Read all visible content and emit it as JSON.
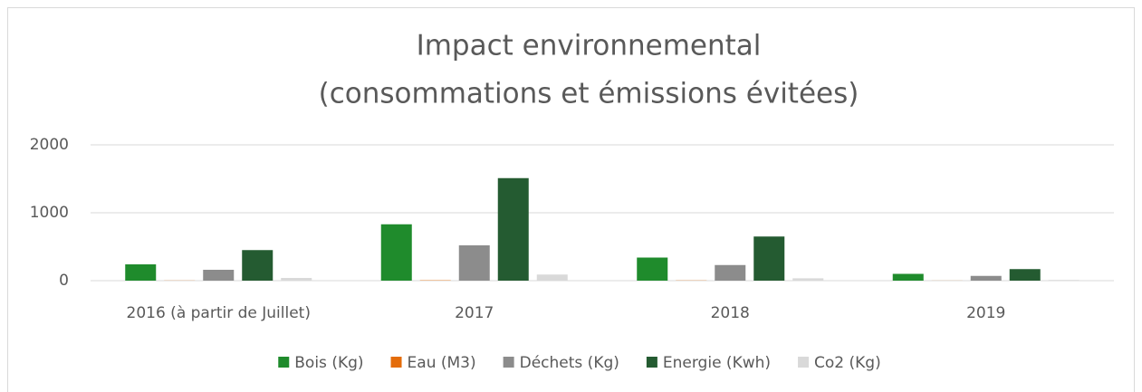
{
  "chart_data": {
    "type": "bar",
    "title": [
      "Impact environnemental",
      "(consommations et émissions évitées)"
    ],
    "categories": [
      "2016 (à partir de Juillet)",
      "2017",
      "2018",
      "2019"
    ],
    "series": [
      {
        "name": "Bois (Kg)",
        "color": "#1f8b2c",
        "values": [
          240,
          830,
          340,
          100
        ]
      },
      {
        "name": "Eau (M3)",
        "color": "#e46c0a",
        "values": [
          2,
          5,
          3,
          1
        ]
      },
      {
        "name": "Déchets (Kg)",
        "color": "#8c8c8c",
        "values": [
          160,
          520,
          230,
          70
        ]
      },
      {
        "name": "Energie (Kwh)",
        "color": "#245b31",
        "values": [
          450,
          1510,
          650,
          170
        ]
      },
      {
        "name": "Co2 (Kg)",
        "color": "#d9d9d9",
        "values": [
          40,
          90,
          35,
          10
        ]
      }
    ],
    "ylim": [
      0,
      2000
    ],
    "yticks": [
      0,
      1000,
      2000
    ],
    "grid": true,
    "legend": "bottom"
  }
}
